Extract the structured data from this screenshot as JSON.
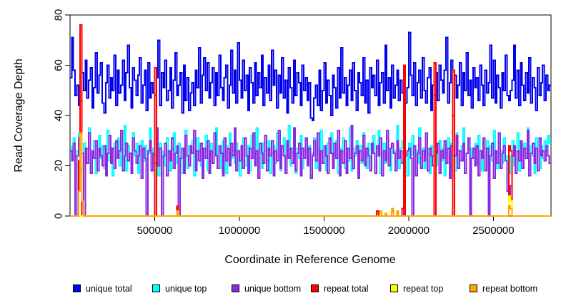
{
  "figure": {
    "y_axis_title": "Read Coverage Depth",
    "x_axis_title": "Coordinate in Reference Genome"
  },
  "chart_data": {
    "type": "line",
    "style": "step-after",
    "title": "",
    "xlabel": "Coordinate in Reference Genome",
    "ylabel": "Read Coverage Depth",
    "grid": false,
    "legend_position": "bottom",
    "n_points": 284,
    "x_step": 10000,
    "x_range": [
      0,
      2840000
    ],
    "y_range": [
      0,
      80
    ],
    "x_ticks": [
      "500000",
      "1000000",
      "1500000",
      "2000000",
      "2500000"
    ],
    "x_tick_values": [
      500000,
      1000000,
      1500000,
      2000000,
      2500000
    ],
    "y_ticks": [
      "0",
      "20",
      "40",
      "60",
      "80"
    ],
    "y_tick_values": [
      0,
      20,
      40,
      60,
      80
    ],
    "series": [
      {
        "name": "unique total",
        "color": "#0000EE",
        "values": [
          55,
          71,
          58,
          48,
          52,
          44,
          46,
          57,
          50,
          62,
          47,
          54,
          59,
          43,
          51,
          65,
          49,
          56,
          61,
          45,
          41,
          53,
          60,
          47,
          55,
          50,
          64,
          44,
          58,
          49,
          52,
          62,
          46,
          57,
          68,
          51,
          43,
          59,
          54,
          48,
          56,
          63,
          45,
          52,
          58,
          42,
          61,
          47,
          53,
          49,
          48,
          55,
          70,
          44,
          57,
          51,
          62,
          46,
          50,
          59,
          43,
          54,
          65,
          48,
          52,
          57,
          41,
          60,
          46,
          55,
          42,
          49,
          53,
          44,
          58,
          51,
          67,
          45,
          56,
          63,
          50,
          61,
          47,
          53,
          59,
          44,
          57,
          48,
          64,
          51,
          46,
          55,
          60,
          43,
          52,
          66,
          49,
          58,
          45,
          69,
          54,
          47,
          62,
          50,
          56,
          42,
          59,
          53,
          45,
          61,
          48,
          57,
          51,
          64,
          44,
          55,
          49,
          60,
          46,
          66,
          52,
          58,
          43,
          56,
          49,
          63,
          47,
          54,
          41,
          59,
          51,
          45,
          62,
          48,
          57,
          53,
          44,
          60,
          50,
          55,
          46,
          53,
          39,
          38,
          47,
          52,
          44,
          58,
          42,
          50,
          61,
          45,
          54,
          48,
          40,
          56,
          51,
          43,
          59,
          47,
          67,
          49,
          55,
          44,
          52,
          58,
          46,
          61,
          50,
          42,
          57,
          53,
          48,
          63,
          45,
          54,
          41,
          59,
          51,
          56,
          48,
          62,
          44,
          53,
          57,
          45,
          68,
          50,
          55,
          43,
          60,
          47,
          52,
          58,
          46,
          54,
          49,
          52,
          45,
          51,
          73,
          56,
          48,
          61,
          44,
          53,
          58,
          47,
          63,
          50,
          45,
          55,
          59,
          42,
          52,
          48,
          57,
          46,
          60,
          54,
          49,
          58,
          71,
          45,
          53,
          62,
          40,
          56,
          47,
          52,
          61,
          44,
          57,
          50,
          65,
          48,
          54,
          43,
          59,
          51,
          55,
          46,
          60,
          52,
          44,
          58,
          49,
          53,
          68,
          47,
          62,
          45,
          56,
          51,
          43,
          57,
          50,
          64,
          48,
          46,
          50,
          54,
          68,
          47,
          58,
          44,
          61,
          52,
          46,
          57,
          49,
          63,
          45,
          55,
          51,
          42,
          59,
          48,
          53,
          60,
          46,
          56,
          50,
          52
        ]
      },
      {
        "name": "unique top",
        "color": "#00FFFF",
        "values": [
          28,
          24,
          31,
          20,
          26,
          33,
          18,
          25,
          29,
          22,
          27,
          35,
          21,
          24,
          30,
          17,
          26,
          32,
          23,
          28,
          19,
          25,
          34,
          22,
          27,
          16,
          29,
          24,
          31,
          20,
          26,
          23,
          36,
          18,
          28,
          25,
          21,
          33,
          24,
          29,
          17,
          26,
          30,
          22,
          28,
          19,
          25,
          35,
          21,
          27,
          24,
          32,
          16,
          29,
          23,
          26,
          20,
          31,
          25,
          18,
          27,
          33,
          21,
          24,
          29,
          17,
          26,
          22,
          34,
          19,
          28,
          25,
          30,
          16,
          23,
          31,
          26,
          20,
          27,
          24,
          32,
          18,
          25,
          29,
          21,
          27,
          35,
          22,
          26,
          19,
          30,
          24,
          17,
          28,
          33,
          23,
          26,
          21,
          29,
          25,
          16,
          27,
          31,
          20,
          24,
          28,
          18,
          32,
          25,
          21,
          35,
          23,
          27,
          19,
          29,
          26,
          22,
          30,
          17,
          25,
          28,
          21,
          33,
          24,
          18,
          27,
          31,
          22,
          26,
          36,
          20,
          25,
          29,
          17,
          27,
          23,
          32,
          19,
          26,
          30,
          22,
          28,
          16,
          25,
          31,
          19,
          27,
          24,
          34,
          21,
          26,
          18,
          29,
          25,
          33,
          20,
          24,
          30,
          17,
          27,
          25,
          31,
          19,
          26,
          22,
          35,
          18,
          27,
          24,
          30,
          16,
          28,
          21,
          33,
          25,
          19,
          29,
          23,
          26,
          32,
          20,
          27,
          34,
          17,
          25,
          29,
          21,
          31,
          24,
          18,
          28,
          26,
          22,
          36,
          19,
          27,
          30,
          23,
          25,
          16,
          29,
          24,
          32,
          18,
          26,
          21,
          35,
          23,
          27,
          19,
          31,
          25,
          17,
          28,
          24,
          33,
          20,
          26,
          30,
          22,
          27,
          16,
          25,
          31,
          21,
          29,
          24,
          18,
          33,
          26,
          22,
          28,
          35,
          19,
          25,
          30,
          17,
          27,
          23,
          29,
          21,
          32,
          26,
          18,
          27,
          24,
          30,
          16,
          28,
          22,
          34,
          25,
          19,
          29,
          26,
          21,
          31,
          24,
          13,
          17,
          24,
          30,
          20,
          27,
          33,
          18,
          26,
          22,
          29,
          25,
          35,
          21,
          28,
          24,
          17,
          31,
          26,
          19,
          28,
          23,
          30,
          26,
          32,
          29
        ]
      },
      {
        "name": "unique bottom",
        "color": "#8A2BE2",
        "values": [
          26,
          22,
          29,
          0,
          24,
          31,
          19,
          25,
          0,
          27,
          21,
          33,
          17,
          26,
          23,
          30,
          18,
          27,
          24,
          20,
          28,
          16,
          25,
          32,
          21,
          27,
          19,
          30,
          23,
          26,
          34,
          18,
          24,
          29,
          22,
          25,
          17,
          31,
          26,
          21,
          24,
          28,
          15,
          27,
          23,
          0,
          26,
          30,
          18,
          25,
          21,
          35,
          20,
          27,
          0,
          24,
          29,
          16,
          26,
          22,
          31,
          19,
          25,
          28,
          0,
          23,
          27,
          17,
          32,
          24,
          20,
          28,
          25,
          34,
          18,
          26,
          22,
          29,
          15,
          27,
          23,
          30,
          17,
          26,
          21,
          33,
          24,
          19,
          28,
          25,
          16,
          31,
          22,
          27,
          20,
          29,
          24,
          35,
          18,
          26,
          22,
          28,
          19,
          31,
          24,
          17,
          27,
          23,
          33,
          20,
          26,
          15,
          29,
          25,
          21,
          32,
          18,
          27,
          24,
          30,
          16,
          26,
          22,
          34,
          19,
          28,
          24,
          17,
          30,
          23,
          27,
          21,
          35,
          18,
          25,
          29,
          16,
          27,
          23,
          31,
          20,
          27,
          15,
          24,
          30,
          22,
          33,
          18,
          26,
          21,
          28,
          24,
          17,
          31,
          25,
          19,
          29,
          23,
          34,
          16,
          26,
          21,
          30,
          17,
          27,
          23,
          36,
          19,
          25,
          28,
          15,
          26,
          22,
          32,
          20,
          27,
          24,
          18,
          29,
          25,
          17,
          28,
          24,
          31,
          16,
          26,
          22,
          34,
          20,
          27,
          29,
          25,
          18,
          30,
          23,
          26,
          21,
          0,
          24,
          26,
          27,
          23,
          0,
          28,
          16,
          25,
          31,
          19,
          26,
          22,
          33,
          18,
          27,
          24,
          20,
          0,
          25,
          29,
          17,
          26,
          23,
          30,
          21,
          27,
          15,
          28,
          0,
          24,
          32,
          19,
          26,
          22,
          29,
          17,
          25,
          31,
          0,
          23,
          27,
          20,
          28,
          16,
          26,
          23,
          31,
          18,
          27,
          0,
          24,
          29,
          15,
          26,
          21,
          33,
          19,
          25,
          28,
          22,
          10,
          8,
          12,
          24,
          28,
          17,
          26,
          22,
          30,
          19,
          27,
          23,
          34,
          16,
          25,
          29,
          21,
          27,
          18,
          31,
          24,
          26,
          22,
          28,
          24,
          21
        ]
      },
      {
        "name": "repeat total",
        "color": "#FF0000",
        "base": 0,
        "spikes": {
          "5": 22,
          "6": 76,
          "50": 59,
          "63": 4,
          "181": 2,
          "190": 2,
          "196": 3,
          "197": 60,
          "215": 61,
          "226": 58,
          "259": 28,
          "260": 26
        }
      },
      {
        "name": "repeat top",
        "color": "#FFFF00",
        "base": 0,
        "spikes": {
          "259": 8,
          "260": 6
        }
      },
      {
        "name": "repeat bottom",
        "color": "#FFA500",
        "base": 0,
        "spikes": {
          "5": 10,
          "6": 33,
          "7": 6,
          "63": 2,
          "183": 2,
          "186": 1,
          "190": 3,
          "193": 2,
          "259": 4,
          "260": 3
        }
      }
    ]
  }
}
